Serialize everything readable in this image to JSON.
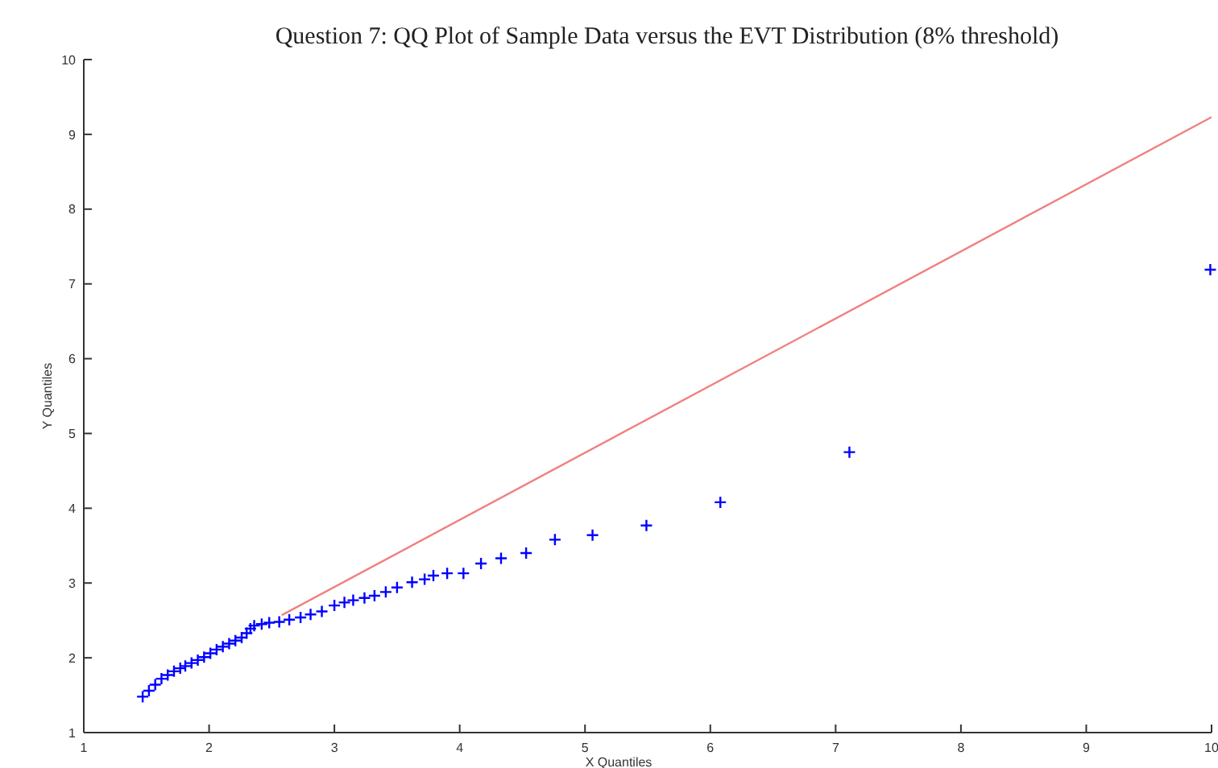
{
  "chart_data": {
    "type": "scatter",
    "title": "Question 7: QQ Plot of Sample Data versus the EVT Distribution (8% threshold)",
    "xlabel": "X Quantiles",
    "ylabel": "Y Quantiles",
    "xlim": [
      1,
      10
    ],
    "ylim": [
      1,
      10
    ],
    "xticks": [
      1,
      2,
      3,
      4,
      5,
      6,
      7,
      8,
      9,
      10
    ],
    "yticks": [
      1,
      2,
      3,
      4,
      5,
      6,
      7,
      8,
      9,
      10
    ],
    "grid": false,
    "series": [
      {
        "marker": "cross",
        "color": "#0000ff",
        "x": [
          1.47,
          1.52,
          1.57,
          1.62,
          1.67,
          1.72,
          1.77,
          1.81,
          1.86,
          1.91,
          1.96,
          2.01,
          2.06,
          2.11,
          2.16,
          2.21,
          2.26,
          2.3,
          2.33,
          2.36,
          2.42,
          2.48,
          2.56,
          2.64,
          2.73,
          2.81,
          2.9,
          3.0,
          3.08,
          3.15,
          3.24,
          3.32,
          3.41,
          3.5,
          3.62,
          3.72,
          3.79,
          3.9,
          4.03,
          4.17,
          4.33,
          4.53,
          4.76,
          5.06,
          5.49,
          6.08,
          7.11,
          9.99
        ],
        "values": [
          1.48,
          1.56,
          1.64,
          1.72,
          1.77,
          1.82,
          1.86,
          1.89,
          1.93,
          1.97,
          2.01,
          2.06,
          2.11,
          2.15,
          2.19,
          2.23,
          2.27,
          2.33,
          2.39,
          2.43,
          2.45,
          2.47,
          2.48,
          2.51,
          2.54,
          2.58,
          2.62,
          2.7,
          2.74,
          2.77,
          2.8,
          2.83,
          2.88,
          2.94,
          3.01,
          3.05,
          3.1,
          3.13,
          3.13,
          3.26,
          3.33,
          3.4,
          3.58,
          3.64,
          3.77,
          4.08,
          4.75,
          7.19
        ]
      },
      {
        "type": "line",
        "color": "#f08080",
        "line_style": "solid",
        "x": [
          2.58,
          10
        ],
        "values": [
          2.57,
          9.23
        ]
      }
    ]
  }
}
